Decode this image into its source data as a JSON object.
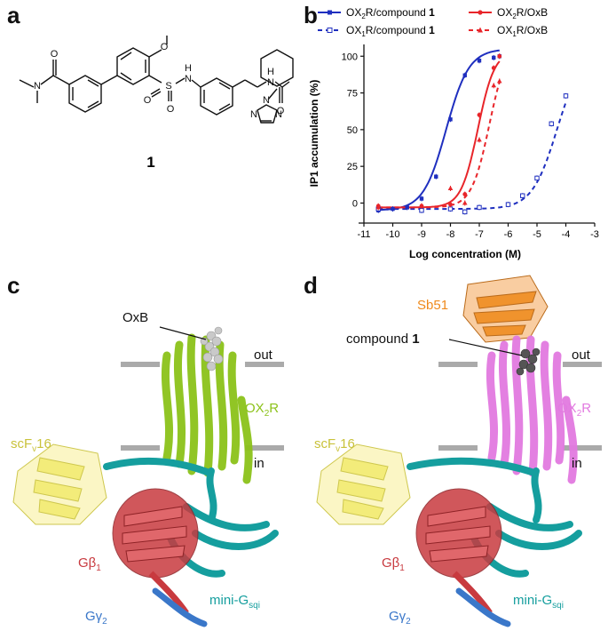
{
  "panels": {
    "a": {
      "letter": "a",
      "compound_number": "1",
      "atoms": {
        "N_amide": "N",
        "O_amide": "O",
        "O_methoxy": "O",
        "S": "S",
        "O_s1": "O",
        "O_s2": "O",
        "NH": "H",
        "N_s": "N",
        "NH2": "H",
        "N_amide2": "N",
        "O_amide2": "O",
        "N_tri1": "N",
        "N_tri2": "N",
        "N_tri3": "N"
      }
    },
    "b": {
      "letter": "b"
    },
    "c": {
      "letter": "c",
      "labels": {
        "oxb": "OxB",
        "out": "out",
        "in": "in",
        "receptor": "OX",
        "receptor_sub": "2",
        "receptor_tail": "R",
        "scfv": "scF",
        "scfv_sub": "v",
        "scfv_tail": "16",
        "gb": "Gβ",
        "gb_sub": "1",
        "gg": "Gγ",
        "gg_sub": "2",
        "ming": "mini-G",
        "ming_sub": "sqi"
      }
    },
    "d": {
      "letter": "d",
      "labels": {
        "sb51": "Sb51",
        "compound": "compound ",
        "compound_bold": "1",
        "out": "out",
        "in": "in",
        "receptor": "OX",
        "receptor_sub": "2",
        "receptor_tail": "R",
        "scfv": "scF",
        "scfv_sub": "v",
        "scfv_tail": "16",
        "gb": "Gβ",
        "gb_sub": "1",
        "gg": "Gγ",
        "gg_sub": "2",
        "ming": "mini-G",
        "ming_sub": "sqi"
      }
    }
  },
  "colors": {
    "receptor_c": "#8cc21a",
    "receptor_d": "#e27ae0",
    "scfv": "#f2ea6c",
    "gb": "#c83a3f",
    "gg": "#3a77c9",
    "ming": "#159e9e",
    "sb51": "#ef8a1c",
    "membrane": "#aaaaaa",
    "oxb_spheres": "#c9c9c9",
    "compound_spheres": "#555555"
  },
  "chart_data": {
    "type": "line",
    "xlabel": "Log concentration (M)",
    "ylabel": "IP1 accumulation (%)",
    "xlim": [
      -11,
      -3
    ],
    "ylim": [
      -10,
      105
    ],
    "xticks": [
      "-11",
      "-10",
      "-9",
      "-8",
      "-7",
      "-6",
      "-5",
      "-4",
      "-3"
    ],
    "yticks": [
      "0",
      "25",
      "50",
      "75",
      "100"
    ],
    "legend": [
      {
        "prefix": "OX",
        "sub": "2",
        "suffix": "R/compound ",
        "bold": "1"
      },
      {
        "prefix": "OX",
        "sub": "1",
        "suffix": "R/compound ",
        "bold": "1"
      },
      {
        "prefix": "OX",
        "sub": "2",
        "suffix": "R/OxB",
        "bold": ""
      },
      {
        "prefix": "OX",
        "sub": "1",
        "suffix": "R/OxB",
        "bold": ""
      }
    ],
    "series": [
      {
        "color": "#1f2fbf",
        "dash": false,
        "marker": "square-filled",
        "x": [
          -10.5,
          -10,
          -9.5,
          -9,
          -8.5,
          -8,
          -7.5,
          -7,
          -6.5,
          -6.3
        ],
        "y": [
          -5,
          -4,
          -3,
          3,
          18,
          57,
          87,
          97,
          99,
          100
        ],
        "fit": {
          "bottom": -5,
          "top": 105,
          "logec50": -8.15,
          "hill": 1.1,
          "xmin": -10.5,
          "xmax": -6.3
        }
      },
      {
        "color": "#1f2fbf",
        "dash": true,
        "marker": "square-open",
        "x": [
          -10.5,
          -9,
          -8,
          -7.5,
          -7,
          -6,
          -5.5,
          -5,
          -4.5,
          -4
        ],
        "y": [
          -4,
          -5,
          -4,
          -6,
          -3,
          -1,
          5,
          17,
          54,
          73
        ],
        "fit": {
          "bottom": -4,
          "top": 105,
          "logec50": -4.3,
          "hill": 1.0,
          "xmin": -10.5,
          "xmax": -4
        }
      },
      {
        "color": "#e8252a",
        "dash": false,
        "marker": "circle-filled",
        "x": [
          -10.5,
          -9,
          -8,
          -7.5,
          -7,
          -6.5,
          -6.3
        ],
        "y": [
          -2,
          -2,
          -1,
          6,
          60,
          92,
          100
        ],
        "fit": {
          "bottom": -3,
          "top": 104,
          "logec50": -7.05,
          "hill": 1.5,
          "xmin": -10.5,
          "xmax": -6.3
        }
      },
      {
        "color": "#e8252a",
        "dash": true,
        "marker": "triangle-filled",
        "x": [
          -10.5,
          -9,
          -8,
          -7.5,
          -7,
          -6.5,
          -6.3
        ],
        "y": [
          -3,
          -2,
          10,
          0,
          43,
          80,
          83
        ],
        "fit": {
          "bottom": -3,
          "top": 110,
          "logec50": -6.65,
          "hill": 1.4,
          "xmin": -10.5,
          "xmax": -6.3
        }
      }
    ]
  }
}
